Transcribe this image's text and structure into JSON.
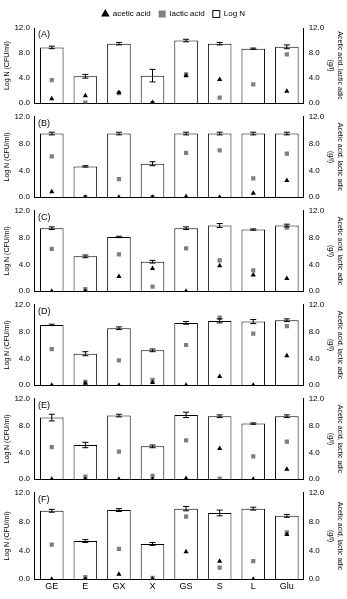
{
  "chart_data": [
    {
      "type": "bar",
      "title": "(A)",
      "categories": [
        "GE",
        "E",
        "GX",
        "X",
        "GS",
        "S",
        "L",
        "Glu"
      ],
      "series": [
        {
          "name": "Log N",
          "type": "bar",
          "color": "#ffffff",
          "values": [
            8.9,
            4.3,
            9.5,
            4.4,
            10.0,
            9.5,
            8.7,
            9.0
          ],
          "errors": [
            0.2,
            0.3,
            0.2,
            1.0,
            0.2,
            0.2,
            0.1,
            0.3
          ]
        },
        {
          "name": "lactic acid",
          "type": "scatter",
          "marker": "square",
          "color": "#808080",
          "axis": "y2",
          "values": [
            3.7,
            0.1,
            1.6,
            0.0,
            4.6,
            0.9,
            3.0,
            7.8
          ]
        },
        {
          "name": "acetic acid",
          "type": "scatter",
          "marker": "triangle",
          "color": "#000000",
          "axis": "y2",
          "values": [
            0.7,
            1.2,
            1.7,
            0.1,
            4.4,
            3.8,
            null,
            1.9
          ]
        }
      ],
      "y_label": "Log N (CFU/ml)",
      "y2_label": [
        "Acetic acid, lactic adic",
        "(g/l)"
      ],
      "ylim": [
        0,
        12
      ],
      "yticks": [
        {
          "value": 0,
          "label": "0.0"
        },
        {
          "value": 4,
          "label": "4.0"
        },
        {
          "value": 8,
          "label": "8.0"
        },
        {
          "value": 12,
          "label": "12.0"
        }
      ],
      "y2lim": [
        0,
        12
      ],
      "y2ticks": [
        {
          "value": 0,
          "label": "0.0"
        },
        {
          "value": 4,
          "label": "4.0"
        },
        {
          "value": 8,
          "label": "8.0"
        },
        {
          "value": 12,
          "label": "12.0"
        }
      ],
      "legend": "top",
      "tick_labels": "y",
      "grid": false
    },
    {
      "type": "bar",
      "title": "(B)",
      "categories": [
        "GE",
        "E",
        "GX",
        "X",
        "GS",
        "S",
        "L",
        "Glu"
      ],
      "series": [
        {
          "name": "Log N",
          "type": "bar",
          "color": "#ffffff",
          "values": [
            9.5,
            4.6,
            9.5,
            5.0,
            9.5,
            9.5,
            9.5,
            9.5
          ],
          "errors": [
            0.2,
            0.1,
            0.2,
            0.3,
            0.2,
            0.2,
            0.2,
            0.2
          ]
        },
        {
          "name": "lactic acid",
          "type": "scatter",
          "marker": "square",
          "color": "#808080",
          "axis": "y2",
          "values": [
            6.1,
            0.0,
            2.7,
            0.0,
            6.6,
            7.0,
            2.8,
            6.5
          ]
        },
        {
          "name": "acetic acid",
          "type": "scatter",
          "marker": "triangle",
          "color": "#000000",
          "axis": "y2",
          "values": [
            0.8,
            0.0,
            0.0,
            0.0,
            0.1,
            0.0,
            0.6,
            2.5
          ]
        }
      ],
      "y_label": "Log N (CFU/ml)",
      "y2_label": [
        "Acetic acid, lactic adic",
        "(g/l)"
      ],
      "ylim": [
        0,
        12
      ],
      "yticks": [
        {
          "value": 0,
          "label": "0.0"
        },
        {
          "value": 4,
          "label": "4.0"
        },
        {
          "value": 8,
          "label": "8.0"
        },
        {
          "value": 12,
          "label": "12.0"
        }
      ],
      "y2lim": [
        0,
        12
      ],
      "y2ticks": [
        {
          "value": 0,
          "label": "0.0"
        },
        {
          "value": 4,
          "label": "4.0"
        },
        {
          "value": 8,
          "label": "8.0"
        },
        {
          "value": 12,
          "label": "12.0"
        }
      ],
      "tick_labels": "y",
      "grid": false
    },
    {
      "type": "bar",
      "title": "(C)",
      "categories": [
        "GE",
        "E",
        "GX",
        "X",
        "GS",
        "S",
        "L",
        "Glu"
      ],
      "series": [
        {
          "name": "Log N",
          "type": "bar",
          "color": "#ffffff",
          "values": [
            9.4,
            5.2,
            8.1,
            4.4,
            9.4,
            9.8,
            9.2,
            9.8
          ],
          "errors": [
            0.2,
            0.2,
            0.1,
            0.2,
            0.2,
            0.3,
            0.1,
            0.2
          ]
        },
        {
          "name": "lactic acid",
          "type": "scatter",
          "marker": "square",
          "color": "#808080",
          "axis": "y2",
          "values": [
            6.3,
            0.3,
            5.5,
            0.7,
            6.4,
            4.6,
            3.1,
            9.5
          ]
        },
        {
          "name": "acetic acid",
          "type": "scatter",
          "marker": "triangle",
          "color": "#000000",
          "axis": "y2",
          "values": [
            0.0,
            0.0,
            2.2,
            3.4,
            0.0,
            3.8,
            2.4,
            1.9
          ]
        }
      ],
      "y_label": "Log N (CFU/ml)",
      "y2_label": [
        "Acetic acid, lactic adic",
        "(g/l)"
      ],
      "ylim": [
        0,
        12
      ],
      "yticks": [
        {
          "value": 0,
          "label": "0.0"
        },
        {
          "value": 4,
          "label": "4.0"
        },
        {
          "value": 8,
          "label": "8.0"
        },
        {
          "value": 12,
          "label": "12.0"
        }
      ],
      "y2lim": [
        0,
        12
      ],
      "y2ticks": [
        {
          "value": 0,
          "label": "0.0"
        },
        {
          "value": 4,
          "label": "4.0"
        },
        {
          "value": 8,
          "label": "8.0"
        },
        {
          "value": 12,
          "label": "12.0"
        }
      ],
      "tick_labels": "y",
      "grid": false
    },
    {
      "type": "bar",
      "title": "(D)",
      "categories": [
        "GE",
        "E",
        "GX",
        "X",
        "GS",
        "S",
        "L",
        "Glu"
      ],
      "series": [
        {
          "name": "Log N",
          "type": "bar",
          "color": "#ffffff",
          "values": [
            9.0,
            4.7,
            8.5,
            5.2,
            9.3,
            9.6,
            9.5,
            9.7
          ],
          "errors": [
            0.1,
            0.3,
            0.2,
            0.2,
            0.2,
            0.3,
            0.3,
            0.2
          ]
        },
        {
          "name": "lactic acid",
          "type": "scatter",
          "marker": "square",
          "color": "#808080",
          "axis": "y2",
          "values": [
            5.4,
            0.5,
            3.7,
            0.8,
            6.0,
            10.1,
            7.7,
            8.8
          ]
        },
        {
          "name": "acetic acid",
          "type": "scatter",
          "marker": "triangle",
          "color": "#000000",
          "axis": "y2",
          "values": [
            0.0,
            0.3,
            0.0,
            0.4,
            0.0,
            1.3,
            0.0,
            4.4
          ]
        }
      ],
      "y_label": "Log N (CFU/ml)",
      "y2_label": [
        "Acetic acid, lactic adic",
        "(g/l)"
      ],
      "ylim": [
        0,
        12
      ],
      "yticks": [
        {
          "value": 0,
          "label": "0.0"
        },
        {
          "value": 4,
          "label": "4.0"
        },
        {
          "value": 8,
          "label": "8.0"
        },
        {
          "value": 12,
          "label": "12.0"
        }
      ],
      "y2lim": [
        0,
        12
      ],
      "y2ticks": [
        {
          "value": 0,
          "label": "0.0"
        },
        {
          "value": 4,
          "label": "4.0"
        },
        {
          "value": 8,
          "label": "8.0"
        },
        {
          "value": 12,
          "label": "12.0"
        }
      ],
      "tick_labels": "y",
      "grid": false
    },
    {
      "type": "bar",
      "title": "(E)",
      "categories": [
        "GE",
        "E",
        "GX",
        "X",
        "GS",
        "S",
        "L",
        "Glu"
      ],
      "series": [
        {
          "name": "Log N",
          "type": "bar",
          "color": "#ffffff",
          "values": [
            9.2,
            5.1,
            9.5,
            4.9,
            9.6,
            9.4,
            8.3,
            9.4
          ],
          "errors": [
            0.5,
            0.4,
            0.2,
            0.2,
            0.4,
            0.2,
            0.1,
            0.2
          ]
        },
        {
          "name": "lactic acid",
          "type": "scatter",
          "marker": "square",
          "color": "#808080",
          "axis": "y2",
          "values": [
            4.8,
            0.4,
            4.1,
            0.5,
            5.8,
            0.1,
            3.4,
            5.6
          ]
        },
        {
          "name": "acetic acid",
          "type": "scatter",
          "marker": "triangle",
          "color": "#000000",
          "axis": "y2",
          "values": [
            0.0,
            0.0,
            0.0,
            0.0,
            0.1,
            4.6,
            0.0,
            1.5
          ]
        }
      ],
      "y_label": "Log N (CFU/ml)",
      "y2_label": [
        "Acetic acid, lactic adic",
        "(g/l)"
      ],
      "ylim": [
        0,
        12
      ],
      "yticks": [
        {
          "value": 0,
          "label": "0.0"
        },
        {
          "value": 4,
          "label": "4.0"
        },
        {
          "value": 8,
          "label": "8.0"
        },
        {
          "value": 12,
          "label": "12.0"
        }
      ],
      "y2lim": [
        0,
        12
      ],
      "y2ticks": [
        {
          "value": 0,
          "label": "0.0"
        },
        {
          "value": 4,
          "label": "4.0"
        },
        {
          "value": 8,
          "label": "8.0"
        },
        {
          "value": 12,
          "label": "12.0"
        }
      ],
      "tick_labels": "y",
      "grid": false
    },
    {
      "type": "bar",
      "title": "(F)",
      "categories": [
        "GE",
        "E",
        "GX",
        "X",
        "GS",
        "S",
        "L",
        "Glu"
      ],
      "series": [
        {
          "name": "Log N",
          "type": "bar",
          "color": "#ffffff",
          "values": [
            9.5,
            5.3,
            9.6,
            4.9,
            9.8,
            9.2,
            9.8,
            8.8
          ],
          "errors": [
            0.2,
            0.2,
            0.2,
            0.2,
            0.3,
            0.4,
            0.2,
            0.2
          ]
        },
        {
          "name": "lactic acid",
          "type": "scatter",
          "marker": "square",
          "color": "#808080",
          "axis": "y2",
          "values": [
            4.8,
            0.3,
            4.2,
            0.2,
            8.7,
            1.6,
            2.5,
            6.5
          ]
        },
        {
          "name": "acetic acid",
          "type": "scatter",
          "marker": "triangle",
          "color": "#000000",
          "axis": "y2",
          "values": [
            0.0,
            0.0,
            0.7,
            0.0,
            3.8,
            2.5,
            0.0,
            6.2
          ]
        }
      ],
      "y_label": "Log N (CFU/ml)",
      "y2_label": [
        "Acetic acid, lactic adic",
        "(g/l)"
      ],
      "ylim": [
        0,
        12
      ],
      "yticks": [
        {
          "value": 0,
          "label": "0.0"
        },
        {
          "value": 4,
          "label": "4.0"
        },
        {
          "value": 8,
          "label": "8.0"
        },
        {
          "value": 12,
          "label": "12.0"
        }
      ],
      "y2lim": [
        0,
        12
      ],
      "y2ticks": [
        {
          "value": 0,
          "label": "0.0"
        },
        {
          "value": 4,
          "label": "4.0"
        },
        {
          "value": 8,
          "label": "8.0"
        },
        {
          "value": 12,
          "label": "12.0"
        }
      ],
      "grid": false
    }
  ]
}
